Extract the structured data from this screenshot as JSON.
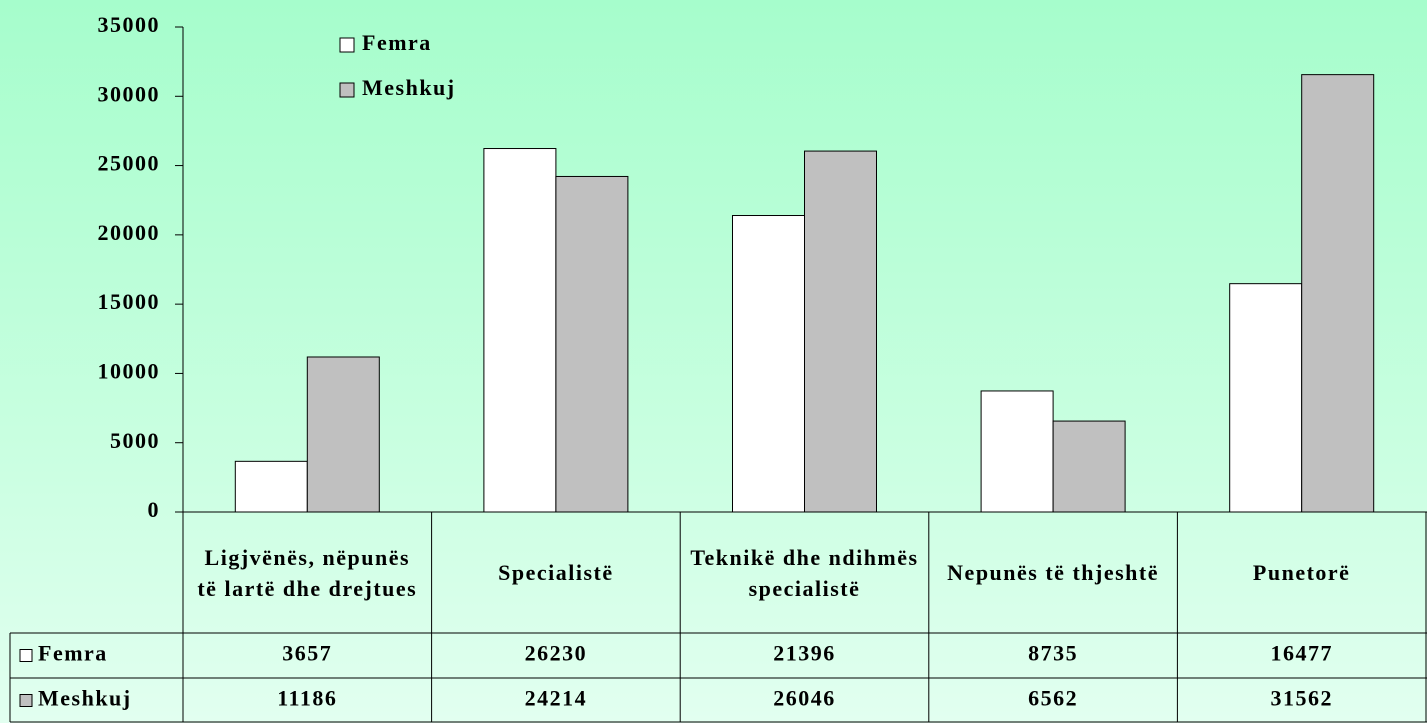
{
  "chart_data": {
    "type": "bar",
    "categories": [
      "Ligjvënës, nëpunës të lartë dhe drejtues",
      "Specialistë",
      "Teknikë dhe ndihmës specialistë",
      "Nepunës të thjeshtë",
      "Punetorë"
    ],
    "series": [
      {
        "name": "Femra",
        "color": "#ffffff",
        "values": [
          3657,
          26230,
          21396,
          8735,
          16477
        ]
      },
      {
        "name": "Meshkuj",
        "color": "#c0c0c0",
        "values": [
          11186,
          24214,
          26046,
          6562,
          31562
        ]
      }
    ],
    "ylim": [
      0,
      35000
    ],
    "yticks": [
      0,
      5000,
      10000,
      15000,
      20000,
      25000,
      30000,
      35000
    ],
    "grid": false,
    "legend": "top-left",
    "data_table": true
  }
}
